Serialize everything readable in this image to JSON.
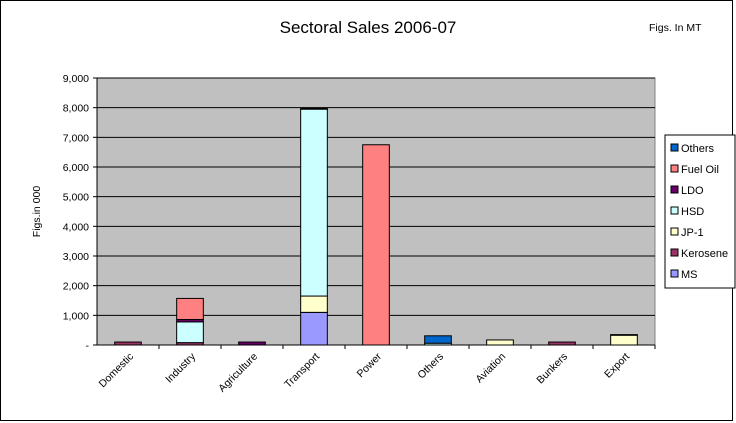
{
  "chart_data": {
    "type": "bar",
    "stacked": true,
    "title": "Sectoral Sales 2006-07",
    "note": "Figs. In MT",
    "xlabel": "",
    "ylabel": "Figs.in 000",
    "ylim": [
      0,
      9000
    ],
    "yticks": [
      {
        "value": 0,
        "label": "-"
      },
      {
        "value": 1000,
        "label": "1,000"
      },
      {
        "value": 2000,
        "label": "2,000"
      },
      {
        "value": 3000,
        "label": "3,000"
      },
      {
        "value": 4000,
        "label": "4,000"
      },
      {
        "value": 5000,
        "label": "5,000"
      },
      {
        "value": 6000,
        "label": "6,000"
      },
      {
        "value": 7000,
        "label": "7,000"
      },
      {
        "value": 8000,
        "label": "8,000"
      },
      {
        "value": 9000,
        "label": "9,000"
      }
    ],
    "grid": true,
    "legend_position": "right",
    "categories": [
      "Domestic",
      "Industry",
      "Agriculture",
      "Transport",
      "Power",
      "Others",
      "Aviation",
      "Bunkers",
      "Export"
    ],
    "series": [
      {
        "name": "MS",
        "color": "#9999ff",
        "values": [
          0,
          0,
          0,
          1100,
          0,
          0,
          0,
          0,
          0
        ]
      },
      {
        "name": "Kerosene",
        "color": "#993366",
        "values": [
          100,
          80,
          0,
          0,
          0,
          0,
          0,
          100,
          0
        ]
      },
      {
        "name": "JP-1",
        "color": "#ffffcc",
        "values": [
          0,
          0,
          0,
          550,
          0,
          0,
          170,
          0,
          330
        ]
      },
      {
        "name": "HSD",
        "color": "#ccffff",
        "values": [
          0,
          700,
          0,
          6300,
          0,
          60,
          0,
          0,
          0
        ]
      },
      {
        "name": "LDO",
        "color": "#660066",
        "values": [
          0,
          80,
          100,
          30,
          0,
          0,
          0,
          0,
          20
        ]
      },
      {
        "name": "Fuel Oil",
        "color": "#ff8080",
        "values": [
          0,
          710,
          0,
          0,
          6750,
          0,
          0,
          0,
          0
        ]
      },
      {
        "name": "Others",
        "color": "#0066cc",
        "values": [
          0,
          0,
          0,
          0,
          0,
          250,
          0,
          0,
          0
        ]
      }
    ],
    "legend_order": [
      "Others",
      "Fuel Oil",
      "LDO",
      "HSD",
      "JP-1",
      "Kerosene",
      "MS"
    ],
    "plot_background": "#c0c0c0"
  }
}
